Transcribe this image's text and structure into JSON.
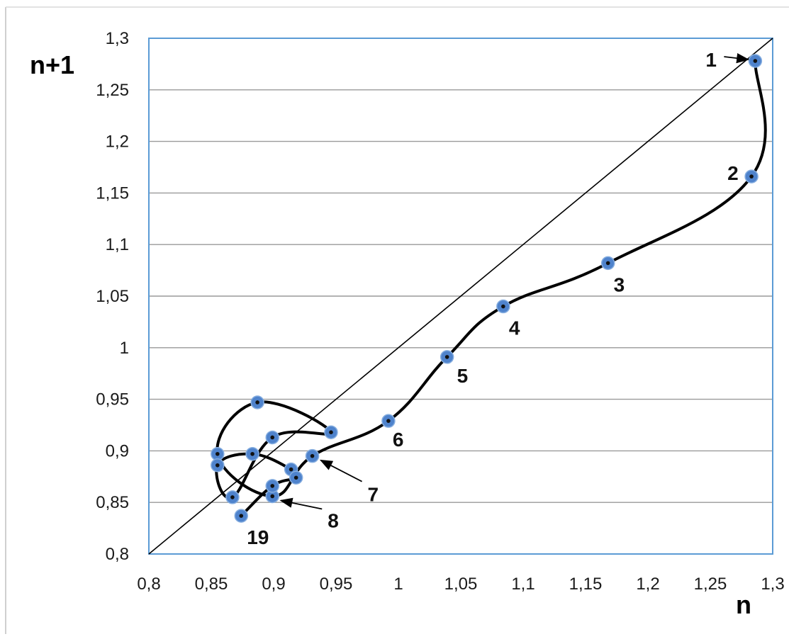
{
  "chart_data": {
    "type": "scatter",
    "title": "",
    "xlabel": "n",
    "ylabel": "n+1",
    "xlim": [
      0.8,
      1.3
    ],
    "ylim": [
      0.8,
      1.3
    ],
    "grid": "horizontal",
    "legend": "none",
    "x_ticks": [
      "0,8",
      "0,85",
      "0,9",
      "0,95",
      "1",
      "1,05",
      "1,1",
      "1,15",
      "1,2",
      "1,25",
      "1,3"
    ],
    "y_ticks": [
      "0,8",
      "0,85",
      "0,9",
      "0,95",
      "1",
      "1,05",
      "1,1",
      "1,15",
      "1,2",
      "1,25",
      "1,3"
    ],
    "reference_line": {
      "from": [
        0.8,
        0.8
      ],
      "to": [
        1.3,
        1.3
      ]
    },
    "series": [
      {
        "values_xy": [
          [
            1.286,
            1.278
          ],
          [
            1.283,
            1.166
          ],
          [
            1.168,
            1.082
          ],
          [
            1.084,
            1.04
          ],
          [
            1.039,
            0.991
          ],
          [
            0.992,
            0.929
          ],
          [
            0.931,
            0.895
          ],
          [
            0.899,
            0.856
          ],
          [
            0.855,
            0.897
          ],
          [
            0.887,
            0.947
          ],
          [
            0.946,
            0.918
          ],
          [
            0.899,
            0.913
          ],
          [
            0.867,
            0.855
          ],
          [
            0.855,
            0.886
          ],
          [
            0.883,
            0.897
          ],
          [
            0.914,
            0.882
          ],
          [
            0.918,
            0.874
          ],
          [
            0.899,
            0.866
          ],
          [
            0.874,
            0.837
          ]
        ]
      }
    ],
    "annotations": [
      {
        "text": "1",
        "point": 0,
        "arrow": true
      },
      {
        "text": "2",
        "point": 1,
        "arrow": false
      },
      {
        "text": "3",
        "point": 2,
        "arrow": false
      },
      {
        "text": "4",
        "point": 3,
        "arrow": false
      },
      {
        "text": "5",
        "point": 4,
        "arrow": false
      },
      {
        "text": "6",
        "point": 5,
        "arrow": false
      },
      {
        "text": "7",
        "point": 6,
        "arrow": true
      },
      {
        "text": "8",
        "point": 7,
        "arrow": true
      },
      {
        "text": "19",
        "point": 18,
        "arrow": false
      }
    ],
    "colors": {
      "marker": "#4f83cc",
      "marker_center": "#111111",
      "line": "#000000",
      "grid": "#9a9a9a",
      "plot_border": "#5b9bd5"
    }
  }
}
